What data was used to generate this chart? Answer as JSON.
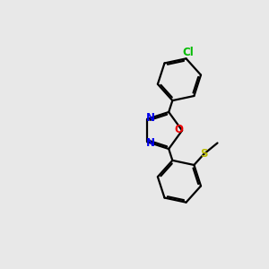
{
  "background_color": "#e8e8e8",
  "bond_color": "#000000",
  "bond_lw": 1.6,
  "atom_colors": {
    "N": "#0000ee",
    "O": "#ee0000",
    "S": "#bbbb00",
    "Cl": "#00bb00"
  },
  "xlim": [
    0,
    10
  ],
  "ylim": [
    0,
    10
  ]
}
